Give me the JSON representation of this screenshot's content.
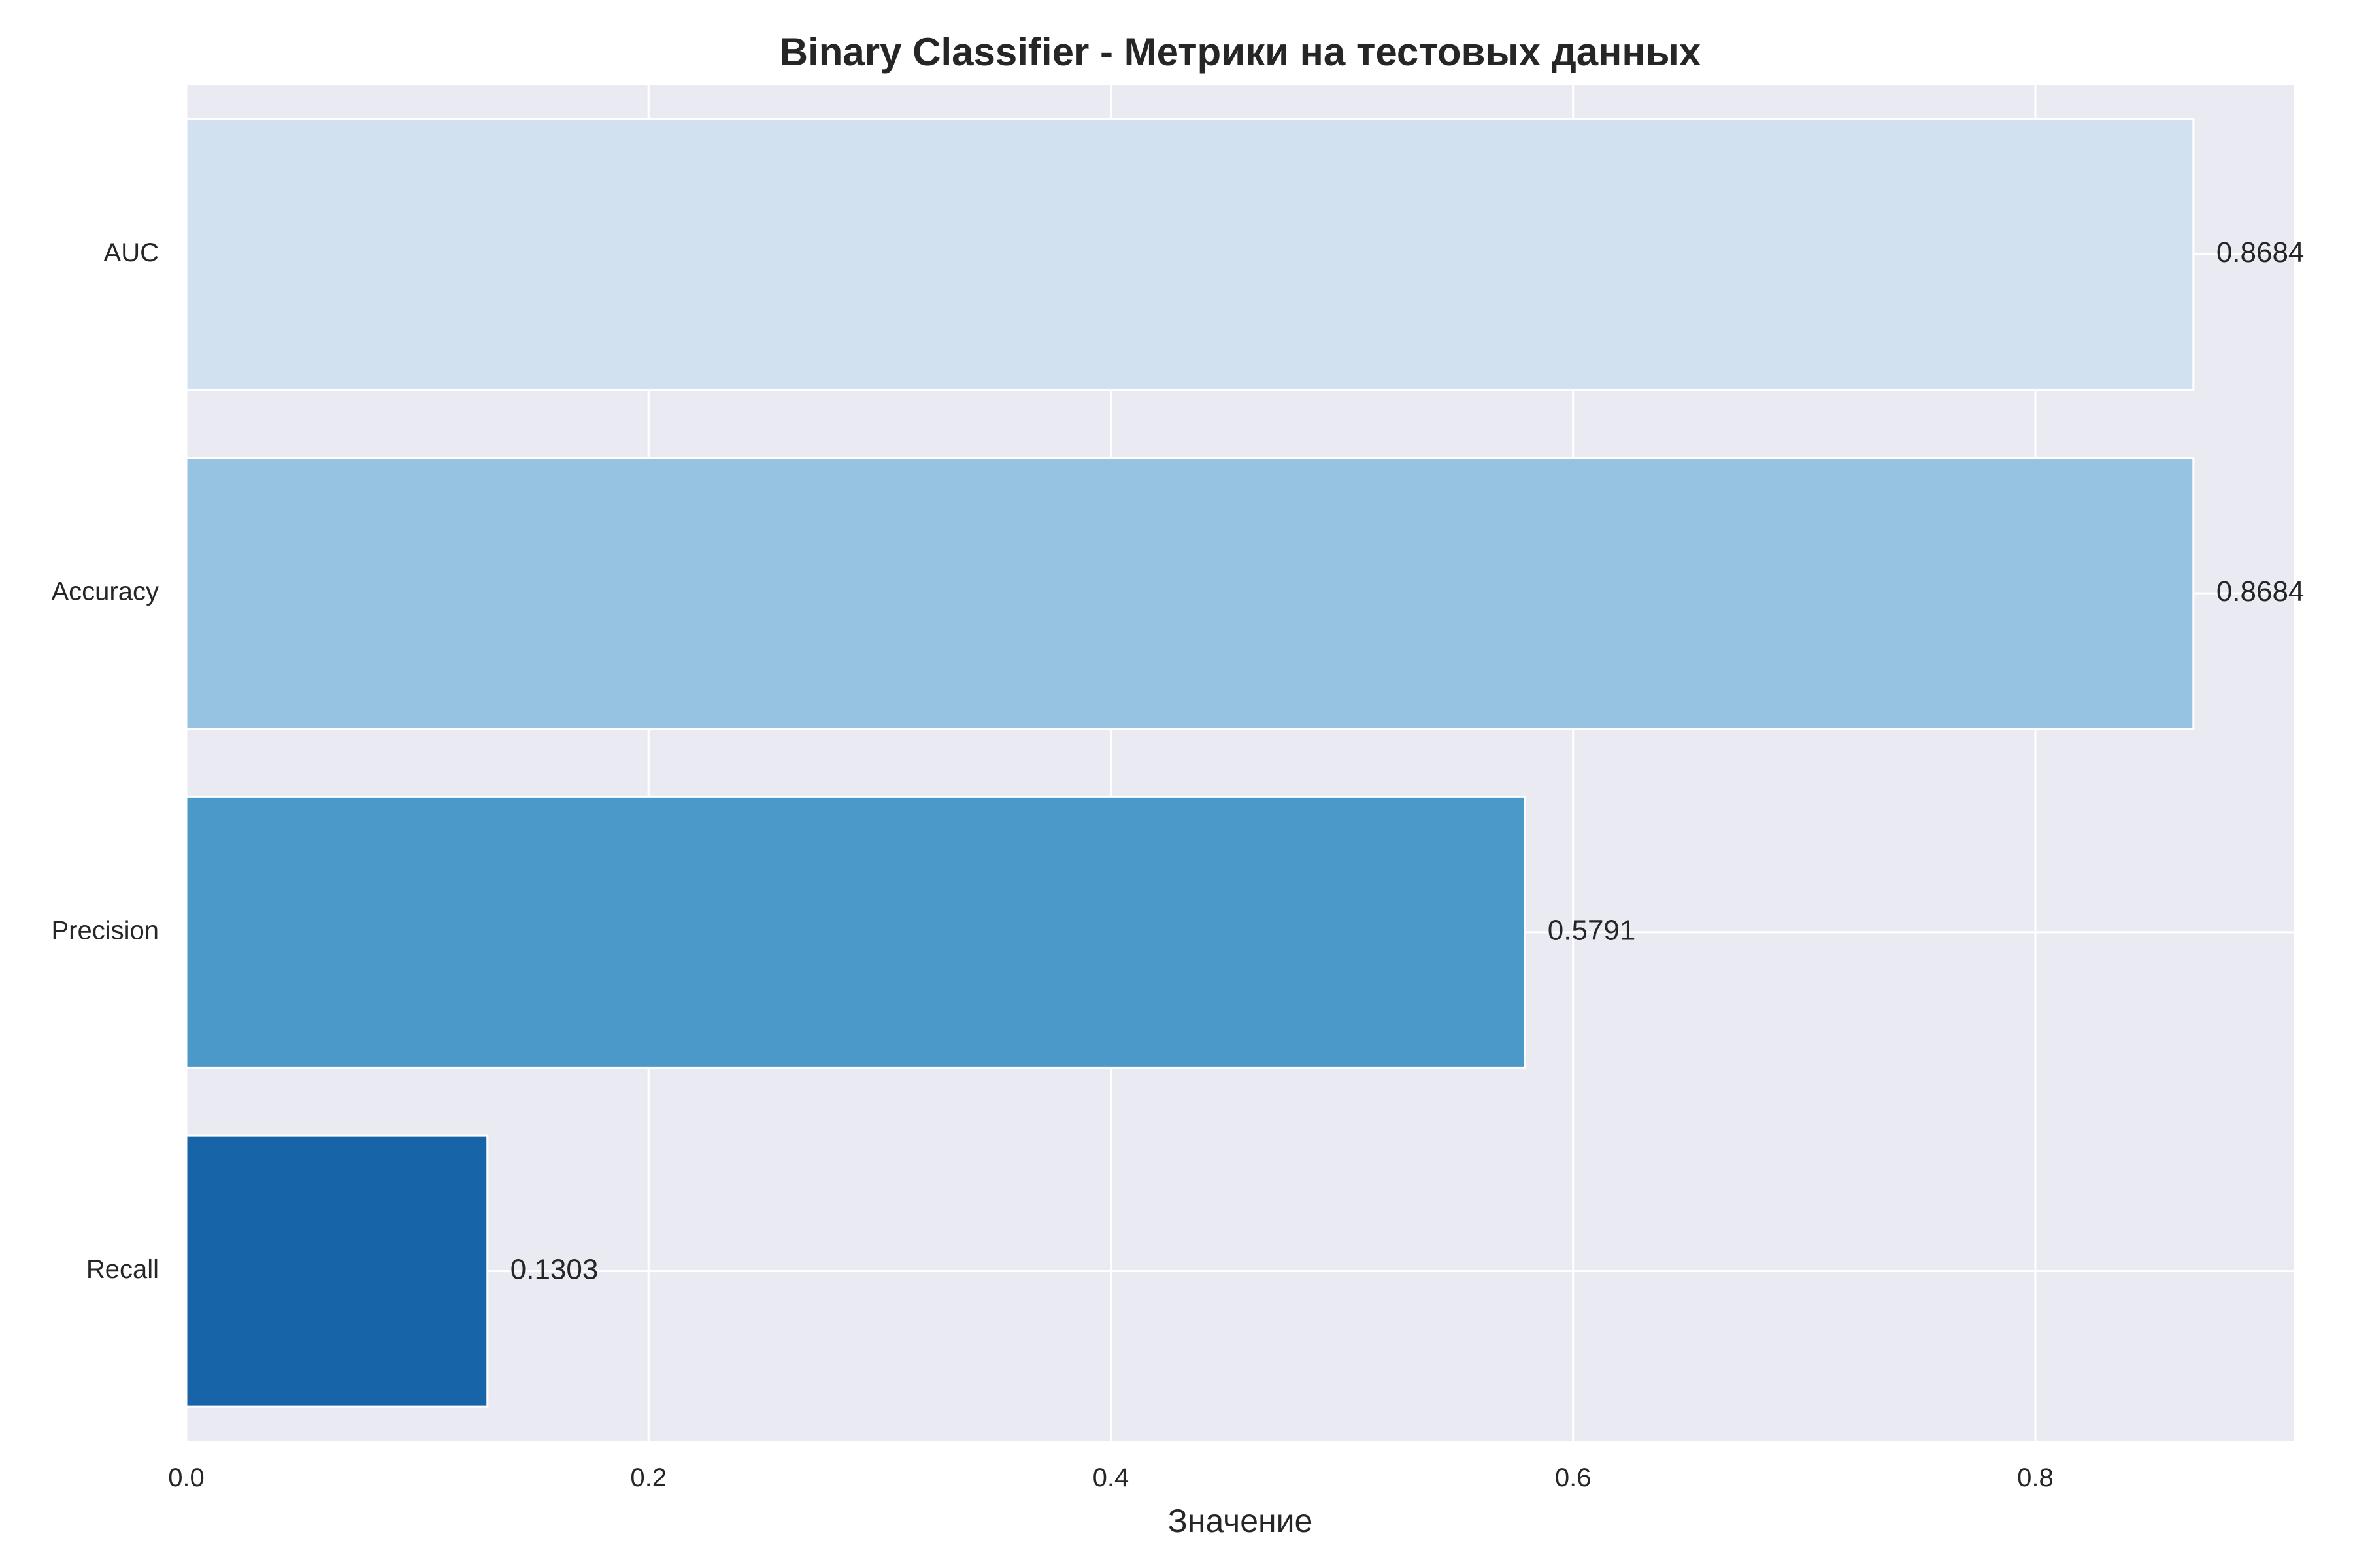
{
  "chart_data": {
    "type": "bar",
    "orientation": "horizontal",
    "title": "Binary Classifier - Метрики на тестовых данных",
    "xlabel": "Значение",
    "ylabel": "",
    "categories": [
      "Recall",
      "Precision",
      "Accuracy",
      "AUC"
    ],
    "values": [
      0.1303,
      0.5791,
      0.8684,
      0.8684
    ],
    "value_labels": [
      "0.1303",
      "0.5791",
      "0.8684",
      "0.8684"
    ],
    "bar_colors": [
      "#1764a8",
      "#4a99c9",
      "#96c3e1",
      "#d2e1f0"
    ],
    "xlim": [
      0,
      0.912
    ],
    "xticks": [
      0.0,
      0.2,
      0.4,
      0.6,
      0.8
    ],
    "xtick_labels": [
      "0.0",
      "0.2",
      "0.4",
      "0.6",
      "0.8"
    ],
    "grid": true,
    "background_color": "#eaeaf2",
    "grid_color": "#ffffff"
  }
}
